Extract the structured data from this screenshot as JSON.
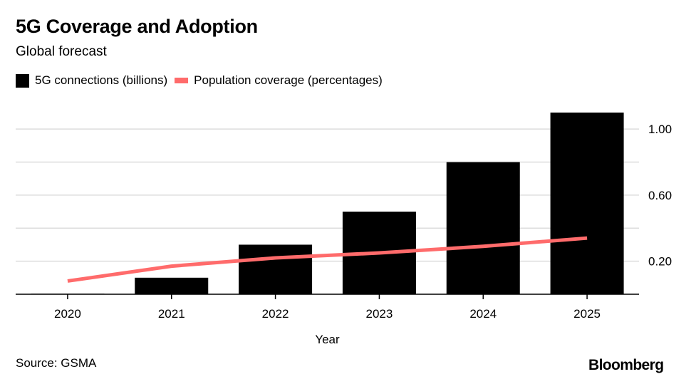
{
  "chart_data": {
    "type": "bar",
    "title": "5G Coverage and Adoption",
    "subtitle": "Global forecast",
    "xlabel": "Year",
    "ylabel": "",
    "categories": [
      "2020",
      "2021",
      "2022",
      "2023",
      "2024",
      "2025"
    ],
    "ylim": [
      0,
      1.1
    ],
    "yticks": [
      0.2,
      0.6,
      1.0
    ],
    "ytick_labels": [
      "0.20",
      "0.60",
      "1.00"
    ],
    "grid": true,
    "legend_position": "top-left",
    "series": [
      {
        "name": "5G connections (billions)",
        "kind": "bar",
        "color": "#000000",
        "values": [
          0.003,
          0.1,
          0.3,
          0.5,
          0.8,
          1.1
        ]
      },
      {
        "name": "Population coverage (percentages)",
        "kind": "line",
        "color": "#ff6b6b",
        "values": [
          0.08,
          0.17,
          0.22,
          0.25,
          0.29,
          0.34
        ]
      }
    ]
  },
  "footer": {
    "source": "Source: GSMA",
    "brand": "Bloomberg"
  }
}
